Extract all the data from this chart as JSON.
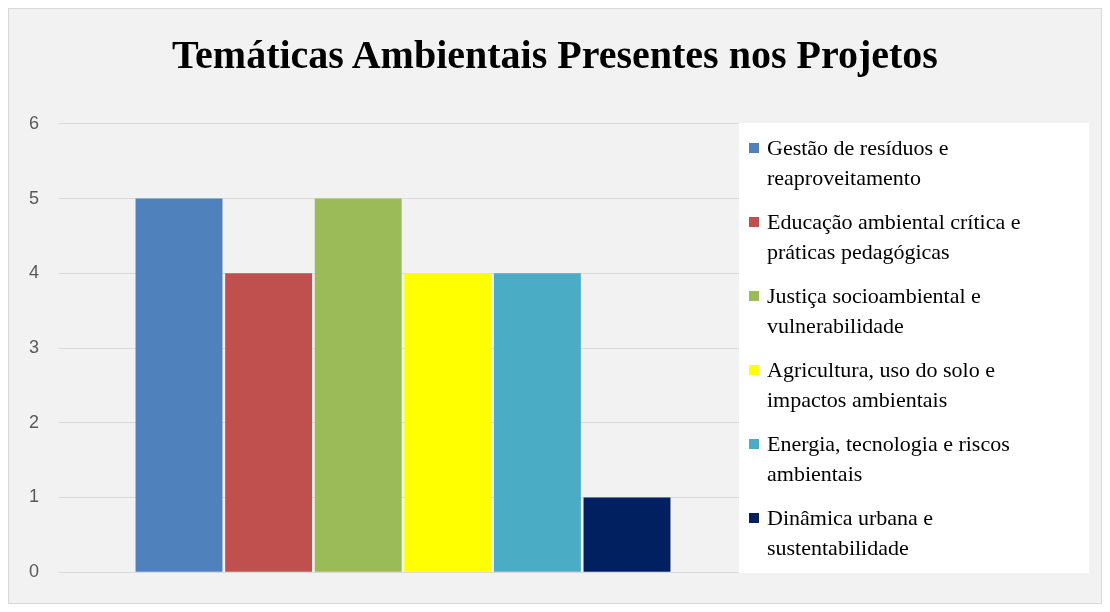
{
  "chart_data": {
    "type": "bar",
    "title": "Temáticas Ambientais Presentes nos Projetos",
    "categories": [
      null
    ],
    "series": [
      {
        "name": "Gestão de resíduos e reaproveitamento",
        "color": "#4f81bd",
        "values": [
          5
        ]
      },
      {
        "name": "Educação ambiental crítica e práticas pedagógicas",
        "color": "#c0504d",
        "values": [
          4
        ]
      },
      {
        "name": "Justiça socioambiental e vulnerabilidade",
        "color": "#9bbb59",
        "values": [
          5
        ]
      },
      {
        "name": "Agricultura, uso do solo e impactos ambientais",
        "color": "#ffff00",
        "values": [
          4
        ]
      },
      {
        "name": "Energia, tecnologia e riscos ambientais",
        "color": "#4bacc6",
        "values": [
          4
        ]
      },
      {
        "name": "Dinâmica urbana e sustentabilidade",
        "color": "#002060",
        "values": [
          1
        ]
      }
    ],
    "ylim": [
      0,
      6
    ],
    "yticks": [
      0,
      1,
      2,
      3,
      4,
      5,
      6
    ],
    "grid": "y",
    "legend": "right"
  }
}
